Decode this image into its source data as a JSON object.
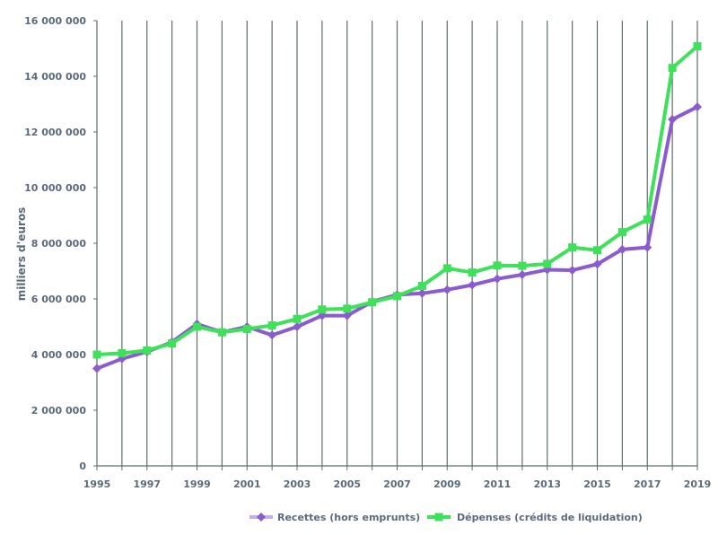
{
  "chart_data": {
    "type": "line",
    "title": "",
    "xlabel": "",
    "ylabel": "milliers d'euros",
    "ylim": [
      0,
      16000000
    ],
    "yticks": [
      0,
      2000000,
      4000000,
      6000000,
      8000000,
      10000000,
      12000000,
      14000000,
      16000000
    ],
    "ytick_labels": [
      "0",
      "2 000 000",
      "4 000 000",
      "6 000 000",
      "8 000 000",
      "10 000 000",
      "12 000 000",
      "14 000 000",
      "16 000 000"
    ],
    "x": [
      1995,
      1996,
      1997,
      1998,
      1999,
      2000,
      2001,
      2002,
      2003,
      2004,
      2005,
      2006,
      2007,
      2008,
      2009,
      2010,
      2011,
      2012,
      2013,
      2014,
      2015,
      2016,
      2017,
      2018,
      2019
    ],
    "xtick_labels": [
      "1995",
      "1997",
      "1999",
      "2001",
      "2003",
      "2005",
      "2007",
      "2009",
      "2011",
      "2013",
      "2015",
      "2017",
      "2019"
    ],
    "grid": "vertical",
    "legend": "bottom",
    "series": [
      {
        "name": "Recettes (hors emprunts)",
        "color": "#8a5ccf",
        "marker": "diamond",
        "values": [
          3500000,
          3850000,
          4100000,
          4450000,
          5100000,
          4800000,
          5000000,
          4700000,
          5000000,
          5400000,
          5400000,
          5900000,
          6150000,
          6200000,
          6330000,
          6500000,
          6720000,
          6870000,
          7050000,
          7030000,
          7250000,
          7780000,
          7850000,
          12450000,
          12900000
        ]
      },
      {
        "name": "Dépenses (crédits de liquidation)",
        "color": "#3fe05a",
        "marker": "square",
        "values": [
          4000000,
          4050000,
          4150000,
          4400000,
          5000000,
          4800000,
          4920000,
          5050000,
          5280000,
          5620000,
          5650000,
          5880000,
          6100000,
          6470000,
          7100000,
          6950000,
          7200000,
          7190000,
          7260000,
          7850000,
          7750000,
          8400000,
          8850000,
          14300000,
          15080000
        ]
      }
    ]
  }
}
